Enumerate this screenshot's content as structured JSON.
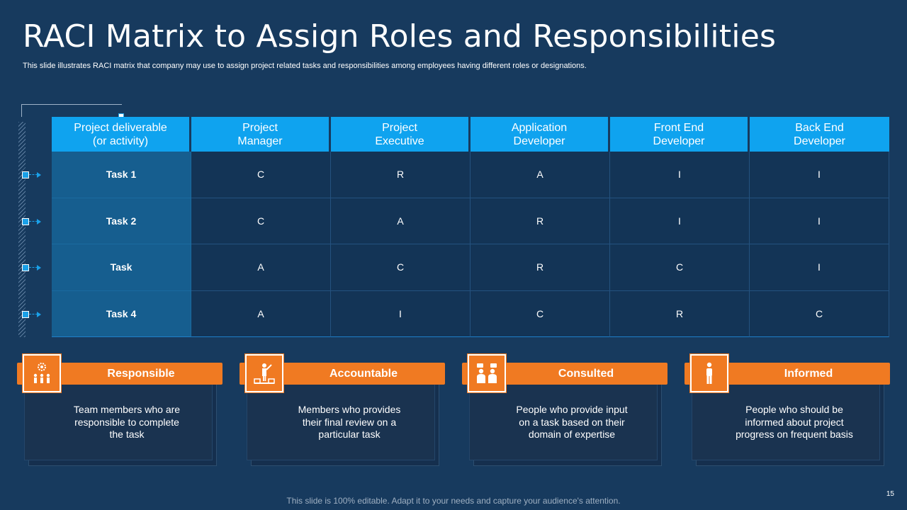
{
  "slide": {
    "title": "RACI Matrix to Assign Roles and Responsibilities",
    "subtitle": "This slide illustrates RACI matrix that company may use to assign project related tasks and responsibilities among employees having different roles or designations.",
    "footer": "This slide is 100% editable. Adapt it to your needs and capture your audience's attention.",
    "page_number": "15"
  },
  "table": {
    "headers": [
      [
        "Project deliverable",
        "(or activity)"
      ],
      [
        "Project",
        "Manager"
      ],
      [
        "Project",
        "Executive"
      ],
      [
        "Application",
        "Developer"
      ],
      [
        "Front End",
        "Developer"
      ],
      [
        "Back End",
        "Developer"
      ]
    ],
    "rows": [
      {
        "task": "Task 1",
        "values": [
          "C",
          "R",
          "A",
          "I",
          "I"
        ]
      },
      {
        "task": "Task 2",
        "values": [
          "C",
          "A",
          "R",
          "I",
          "I"
        ]
      },
      {
        "task": "Task",
        "values": [
          "A",
          "C",
          "R",
          "C",
          "I"
        ]
      },
      {
        "task": "Task 4",
        "values": [
          "A",
          "I",
          "C",
          "R",
          "C"
        ]
      }
    ]
  },
  "cards": [
    {
      "title": "Responsible",
      "icon": "team-gear-icon",
      "desc": [
        "Team members who are",
        "responsible to complete",
        "the task"
      ]
    },
    {
      "title": "Accountable",
      "icon": "presenter-icon",
      "desc": [
        "Members who provides",
        "their final review on a",
        "particular task"
      ]
    },
    {
      "title": "Consulted",
      "icon": "discussion-icon",
      "desc": [
        "People who provide input",
        "on a task based on their",
        "domain of expertise"
      ]
    },
    {
      "title": "Informed",
      "icon": "person-icon",
      "desc": [
        "People who should be",
        "informed about project",
        "progress on frequent basis"
      ]
    }
  ],
  "colors": {
    "background": "#173a5e",
    "header_blue": "#0fa3ef",
    "task_column": "#165e8f",
    "accent_orange": "#f07a22"
  }
}
